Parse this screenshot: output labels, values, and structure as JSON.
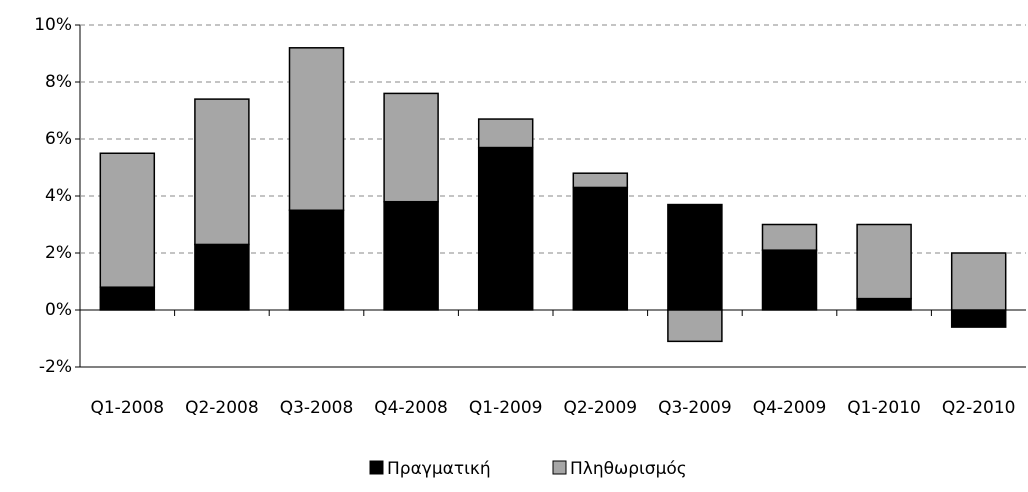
{
  "chart_data": {
    "type": "stacked-bar",
    "categories": [
      "Q1-2008",
      "Q2-2008",
      "Q3-2008",
      "Q4-2008",
      "Q1-2009",
      "Q2-2009",
      "Q3-2009",
      "Q4-2009",
      "Q1-2010",
      "Q2-2010"
    ],
    "series": [
      {
        "name": "Πραγματική",
        "color": "#000000",
        "values": [
          0.8,
          2.3,
          3.5,
          3.8,
          5.7,
          4.3,
          3.7,
          2.1,
          0.4,
          -0.6
        ]
      },
      {
        "name": "Πληθωρισμός",
        "color": "#a6a6a6",
        "values": [
          4.7,
          5.1,
          5.7,
          3.8,
          1.0,
          0.5,
          -1.1,
          0.9,
          2.6,
          2.0
        ]
      }
    ],
    "ylim": [
      -2,
      10
    ],
    "yticks": [
      {
        "value": -2,
        "label": "-2%"
      },
      {
        "value": 0,
        "label": "0%"
      },
      {
        "value": 2,
        "label": "2%"
      },
      {
        "value": 4,
        "label": "4%"
      },
      {
        "value": 6,
        "label": "6%"
      },
      {
        "value": 8,
        "label": "8%"
      },
      {
        "value": 10,
        "label": "10%"
      }
    ],
    "grid": true,
    "legend": "bottom"
  }
}
